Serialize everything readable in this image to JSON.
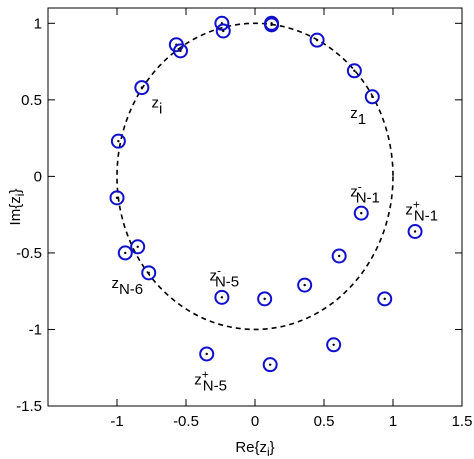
{
  "chart_data": {
    "type": "scatter",
    "xlabel": "Re{z_i}",
    "ylabel": "Im{z_i}",
    "xlim": [
      -1.5,
      1.5
    ],
    "ylim": [
      -1.5,
      1.1
    ],
    "grid": false,
    "x_ticks": [
      -1,
      -0.5,
      0,
      0.5,
      1,
      1.5
    ],
    "x_tick_labels": [
      "-1",
      "-0.5",
      "0",
      "0.5",
      "1",
      "1.5"
    ],
    "y_ticks": [
      -1.5,
      -1,
      -0.5,
      0,
      0.5,
      1
    ],
    "y_tick_labels": [
      "-1.5",
      "-1",
      "-0.5",
      "0",
      "0.5",
      "1"
    ],
    "unit_circle": {
      "center": [
        0,
        0
      ],
      "radius": 1,
      "style": "dashed",
      "color": "#000000"
    },
    "series": [
      {
        "marker": "circle-with-dot",
        "color": "#1010cc",
        "points": [
          [
            0.12,
            0.99
          ],
          [
            0.12,
            1.0
          ],
          [
            -0.24,
            1.0
          ],
          [
            -0.23,
            0.95
          ],
          [
            0.45,
            0.89
          ],
          [
            -0.57,
            0.86
          ],
          [
            -0.54,
            0.82
          ],
          [
            0.72,
            0.69
          ],
          [
            0.85,
            0.52
          ],
          [
            -0.82,
            0.58
          ],
          [
            -0.99,
            0.23
          ],
          [
            -1.0,
            -0.14
          ],
          [
            -0.94,
            -0.5
          ],
          [
            -0.85,
            -0.46
          ],
          [
            -0.77,
            -0.63
          ],
          [
            0.77,
            -0.24
          ],
          [
            1.16,
            -0.36
          ],
          [
            0.61,
            -0.52
          ],
          [
            0.36,
            -0.71
          ],
          [
            -0.24,
            -0.79
          ],
          [
            0.07,
            -0.8
          ],
          [
            0.94,
            -0.8
          ],
          [
            0.57,
            -1.1
          ],
          [
            -0.35,
            -1.16
          ],
          [
            0.11,
            -1.23
          ]
        ]
      }
    ],
    "annotations": [
      {
        "main": "z",
        "sup": "",
        "sub": "i",
        "x": -0.75,
        "y": 0.45
      },
      {
        "main": "z",
        "sup": "",
        "sub": "1",
        "x": 0.69,
        "y": 0.38
      },
      {
        "main": "z",
        "sup": "-",
        "sub": "N-1",
        "x": 0.69,
        "y": -0.13
      },
      {
        "main": "z",
        "sup": "+",
        "sub": "N-1",
        "x": 1.09,
        "y": -0.25
      },
      {
        "main": "z",
        "sup": "-",
        "sub": "N-5",
        "x": -0.33,
        "y": -0.68
      },
      {
        "main": "z",
        "sup": "",
        "sub": "N-6",
        "x": -1.04,
        "y": -0.73
      },
      {
        "main": "z",
        "sup": "+",
        "sub": "N-5",
        "x": -0.44,
        "y": -1.36
      }
    ]
  }
}
